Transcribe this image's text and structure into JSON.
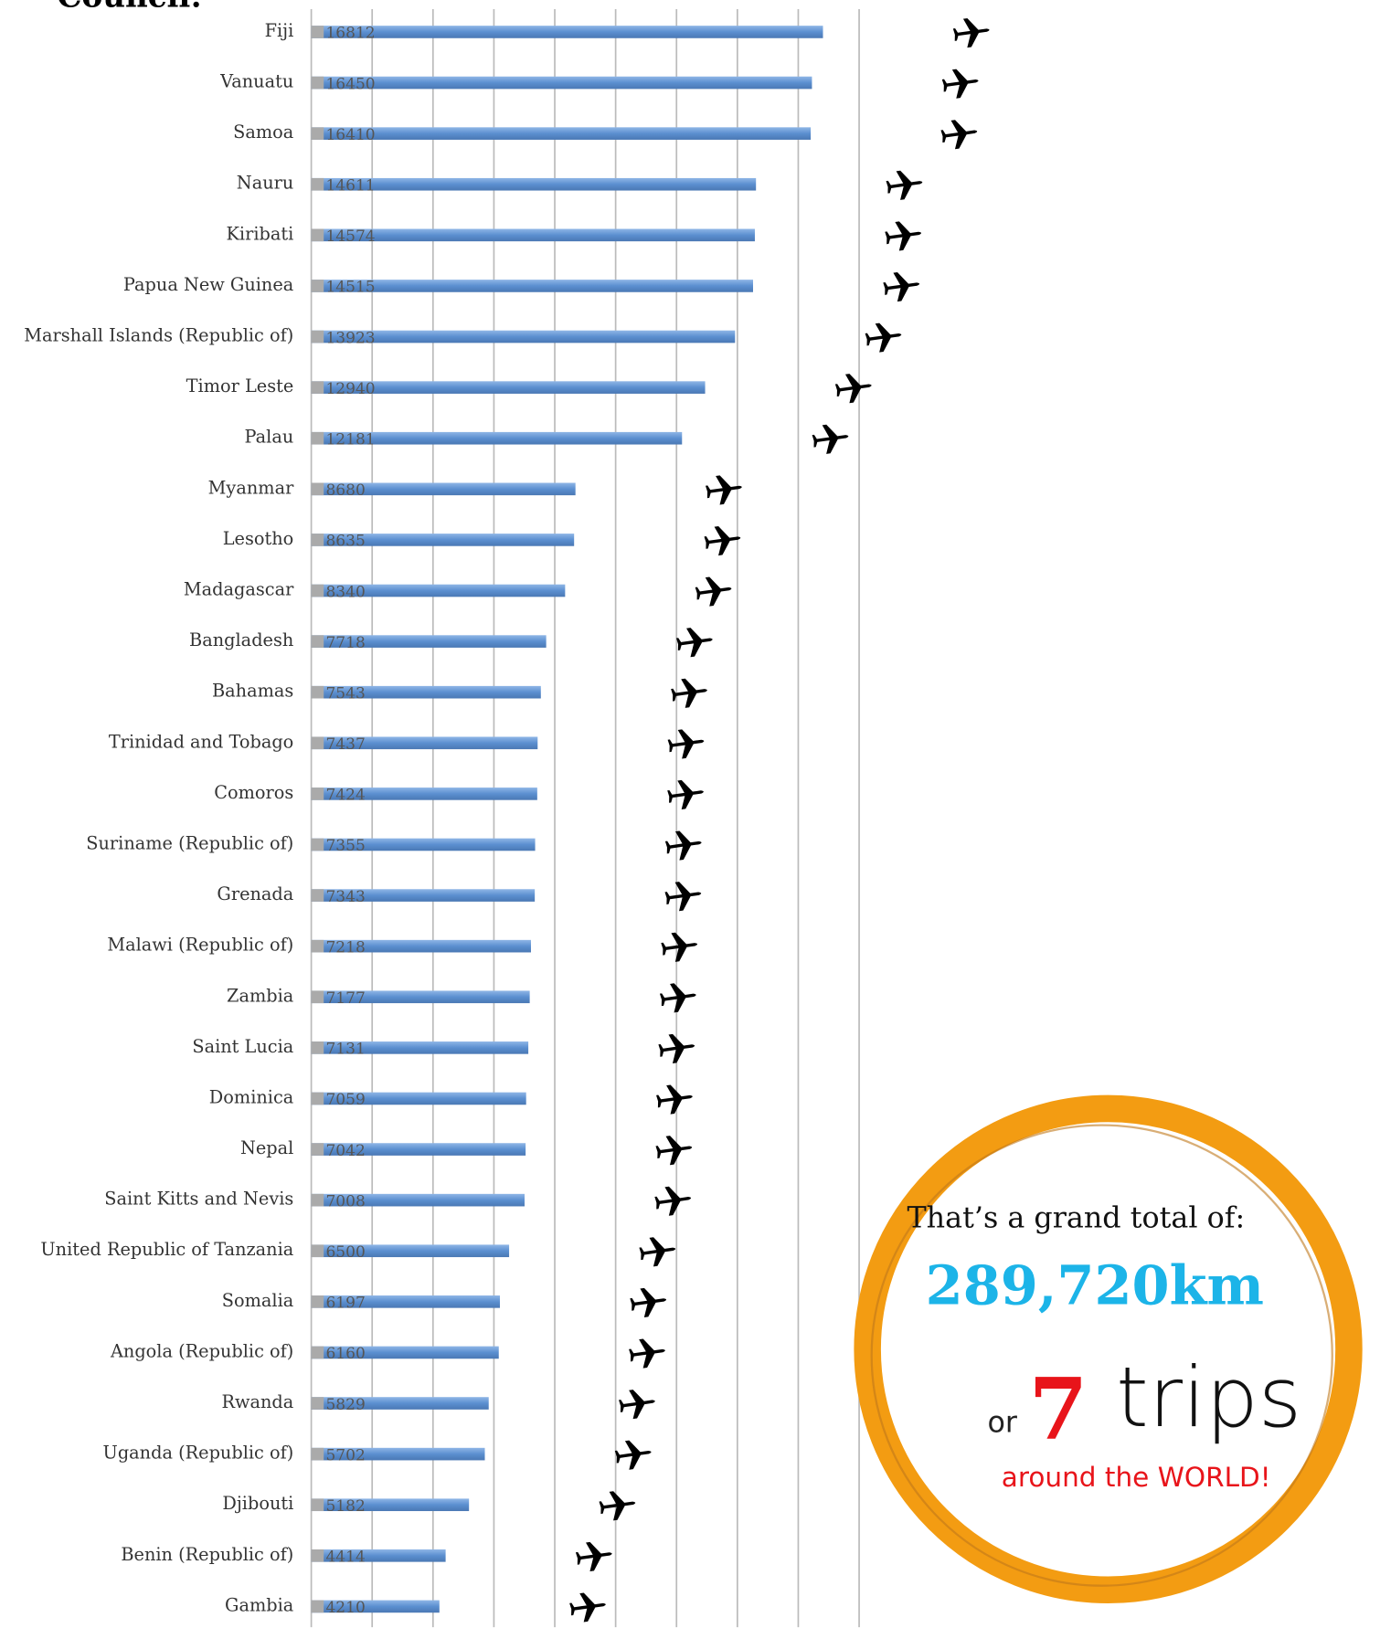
{
  "chart_data": {
    "type": "bar",
    "orientation": "horizontal",
    "title": "Council:",
    "categories": [
      "Fiji",
      "Vanuatu",
      "Samoa",
      "Nauru",
      "Kiribati",
      "Papua New Guinea",
      "Marshall Islands (Republic of)",
      "Timor Leste",
      "Palau",
      "Myanmar",
      "Lesotho",
      "Madagascar",
      "Bangladesh",
      "Bahamas",
      "Trinidad and Tobago",
      "Comoros",
      "Suriname (Republic of)",
      "Grenada",
      "Malawi (Republic of)",
      "Zambia",
      "Saint Lucia",
      "Dominica",
      "Nepal",
      "Saint Kitts and Nevis",
      "United Republic of Tanzania",
      "Somalia",
      "Angola (Republic of)",
      "Rwanda",
      "Uganda (Republic of)",
      "Djibouti",
      "Benin (Republic of)",
      "Gambia"
    ],
    "values": [
      16812,
      16450,
      16410,
      14611,
      14574,
      14515,
      13923,
      12940,
      12181,
      8680,
      8635,
      8340,
      7718,
      7543,
      7437,
      7424,
      7355,
      7343,
      7218,
      7177,
      7131,
      7059,
      7042,
      7008,
      6500,
      6197,
      6160,
      5829,
      5702,
      5182,
      4414,
      4210
    ],
    "color": "#5b8fd0",
    "xlim": [
      0,
      18000
    ],
    "xticks": [
      0,
      2000,
      4000,
      6000,
      8000,
      10000,
      12000,
      14000,
      16000,
      18000
    ],
    "grid": true,
    "annotations": {
      "intro": "That’s a grand total of:",
      "total": "289,720km",
      "or": "or",
      "count": "7",
      "trips": "trips",
      "world": "around the WORLD!"
    }
  }
}
